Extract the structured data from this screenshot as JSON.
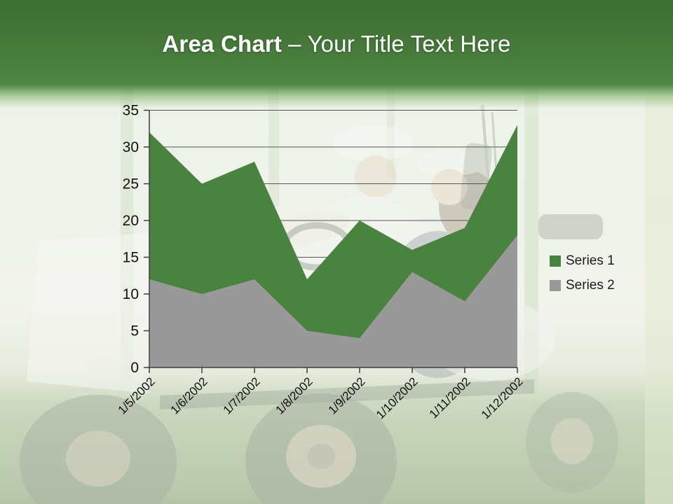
{
  "title": {
    "bold": "Area Chart",
    "rest": "– Your Title Text Here"
  },
  "chart_data": {
    "type": "area",
    "stacked": false,
    "categories": [
      "1/5/2002",
      "1/6/2002",
      "1/7/2002",
      "1/8/2002",
      "1/9/2002",
      "1/10/2002",
      "1/11/2002",
      "1/12/2002"
    ],
    "series": [
      {
        "name": "Series 1",
        "color": "#4a823f",
        "values": [
          32,
          25,
          28,
          12,
          20,
          16,
          19,
          33
        ]
      },
      {
        "name": "Series 2",
        "color": "#999999",
        "values": [
          12,
          10,
          12,
          5,
          4,
          13,
          9,
          18
        ]
      }
    ],
    "ylim": [
      0,
      35
    ],
    "yticks": [
      0,
      5,
      10,
      15,
      20,
      25,
      30,
      35
    ],
    "grid": true,
    "legend_position": "right",
    "x_label_rotation_deg": -45
  },
  "colors": {
    "banner_green": "#4b8140",
    "series1_green": "#4a823f",
    "series2_gray": "#999999",
    "gridline": "#555555",
    "axis": "#3f3f3f",
    "tick_label_text": "#111111",
    "title_text": "#ffffff"
  }
}
